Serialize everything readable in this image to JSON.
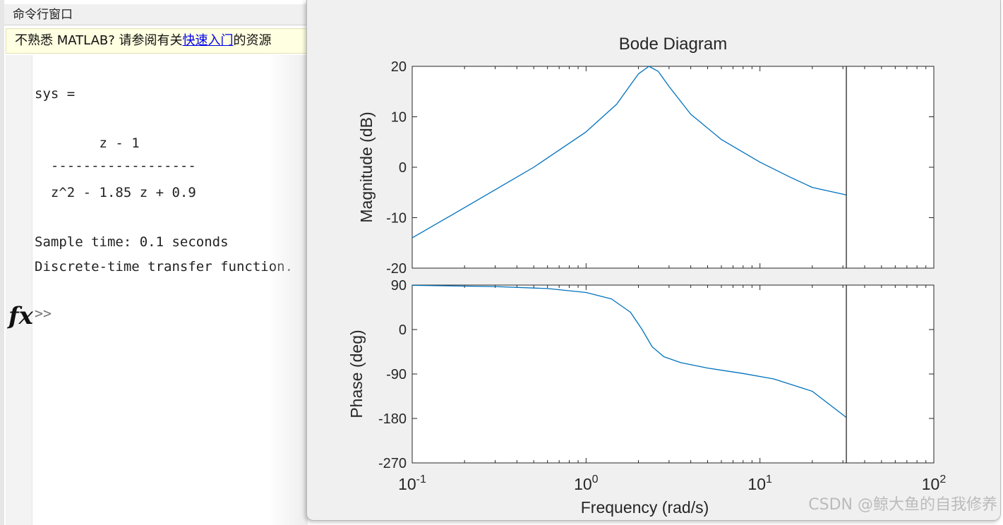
{
  "command_window": {
    "title": "命令行窗口",
    "help_prefix": "不熟悉 MATLAB? 请参阅有关",
    "help_link": "快速入门",
    "help_suffix": "的资源",
    "lines": [
      "sys =",
      "",
      "        z - 1",
      "  ------------------",
      "  z^2 - 1.85 z + 0.9",
      "",
      "Sample time: 0.1 seconds",
      "Discrete-time transfer function."
    ],
    "fx_label": "fx",
    "prompt": ">>"
  },
  "figure": {
    "title": "Bode Diagram",
    "watermark": "CSDN @鲸大鱼的自我修养"
  },
  "chart_data": [
    {
      "type": "line",
      "title": "Bode Diagram",
      "ylabel": "Magnitude (dB)",
      "xscale": "log",
      "xlim": [
        0.1,
        100
      ],
      "ylim": [
        -20,
        20
      ],
      "yticks": [
        "20",
        "10",
        "0",
        "-10",
        "-20"
      ],
      "nyquist_line_x": 31.4,
      "series": [
        {
          "color": "#0072bd",
          "x": [
            0.1,
            0.2,
            0.5,
            1.0,
            1.5,
            2.0,
            2.3,
            2.6,
            3.0,
            4.0,
            6.0,
            10.0,
            15.0,
            20.0,
            31.4
          ],
          "y": [
            -14.0,
            -8.0,
            0.0,
            7.0,
            12.5,
            18.5,
            20.0,
            19.0,
            16.0,
            10.5,
            5.5,
            1.0,
            -2.0,
            -4.0,
            -5.5
          ]
        }
      ]
    },
    {
      "type": "line",
      "xlabel": "Frequency  (rad/s)",
      "ylabel": "Phase (deg)",
      "xscale": "log",
      "xlim": [
        0.1,
        100
      ],
      "ylim": [
        -270,
        90
      ],
      "yticks": [
        "90",
        "0",
        "-90",
        "-180",
        "-270"
      ],
      "xticks": [
        "10^-1",
        "10^0",
        "10^1",
        "10^2"
      ],
      "nyquist_line_x": 31.4,
      "series": [
        {
          "color": "#0072bd",
          "x": [
            0.1,
            0.3,
            0.6,
            1.0,
            1.4,
            1.8,
            2.1,
            2.4,
            2.8,
            3.5,
            5.0,
            8.0,
            12.0,
            20.0,
            31.4
          ],
          "y": [
            89.5,
            87.0,
            83.0,
            75.0,
            62.0,
            35.0,
            0.0,
            -35.0,
            -55.0,
            -67.0,
            -78.0,
            -89.0,
            -100.0,
            -125.0,
            -178.0
          ]
        }
      ]
    }
  ]
}
